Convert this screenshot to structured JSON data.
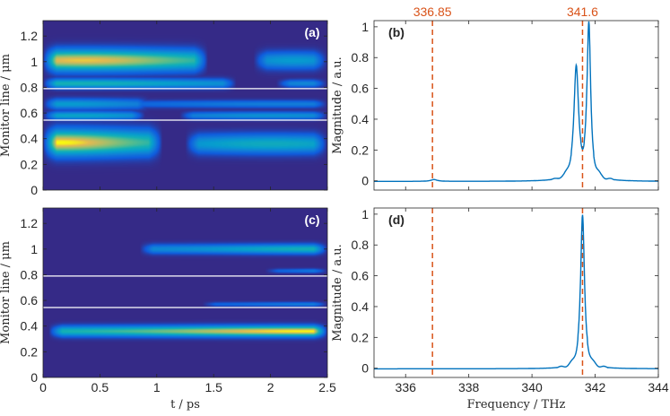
{
  "figure": {
    "colors": {
      "line": "#0072BD",
      "ref_line": "#D95319",
      "map_background": "#352A87",
      "monitor_line": "#FFFFFF"
    },
    "colormap": "parula"
  },
  "chart_data": [
    {
      "panel": "(a)",
      "type": "heatmap",
      "xlabel": "t / ps",
      "ylabel": "Monitor line / μm",
      "xlim": [
        0,
        2.5
      ],
      "ylim": [
        0,
        1.32
      ],
      "xticks": [
        "0",
        "0.5",
        "1",
        "1.5",
        "2",
        "2.5"
      ],
      "yticks": [
        "0",
        "0.2",
        "0.4",
        "0.6",
        "0.8",
        "1",
        "1.2"
      ],
      "monitor_lines_um": [
        0.79,
        0.545
      ],
      "bands": [
        {
          "t_start": 0.0,
          "t_end": 1.45,
          "y_center": 1.01,
          "y_width": 0.1,
          "peak_t": 0.35,
          "peak": 0.95
        },
        {
          "t_start": 1.85,
          "t_end": 2.5,
          "y_center": 1.01,
          "y_width": 0.08,
          "peak_t": 2.2,
          "peak": 0.45
        },
        {
          "t_start": 0.0,
          "t_end": 1.7,
          "y_center": 0.83,
          "y_width": 0.045,
          "peak_t": 0.3,
          "peak": 0.6
        },
        {
          "t_start": 2.05,
          "t_end": 2.5,
          "y_center": 0.83,
          "y_width": 0.035,
          "peak_t": 2.3,
          "peak": 0.35
        },
        {
          "t_start": 0.0,
          "t_end": 0.95,
          "y_center": 0.67,
          "y_width": 0.05,
          "peak_t": 0.2,
          "peak": 0.45
        },
        {
          "t_start": 0.7,
          "t_end": 2.5,
          "y_center": 0.67,
          "y_width": 0.035,
          "peak_t": 2.1,
          "peak": 0.3
        },
        {
          "t_start": 0.0,
          "t_end": 0.9,
          "y_center": 0.58,
          "y_width": 0.04,
          "peak_t": 0.3,
          "peak": 0.5
        },
        {
          "t_start": 1.2,
          "t_end": 2.5,
          "y_center": 0.58,
          "y_width": 0.035,
          "peak_t": 2.0,
          "peak": 0.4
        },
        {
          "t_start": 0.0,
          "t_end": 1.05,
          "y_center": 0.37,
          "y_width": 0.12,
          "peak_t": 0.15,
          "peak": 1.0
        },
        {
          "t_start": 1.25,
          "t_end": 2.5,
          "y_center": 0.36,
          "y_width": 0.09,
          "peak_t": 2.0,
          "peak": 0.55
        }
      ]
    },
    {
      "panel": "(b)",
      "type": "line",
      "xlabel": "Frequency / THz",
      "ylabel": "Magnitude / a.u.",
      "xlim": [
        335,
        344
      ],
      "ylim": [
        -0.06,
        1.04
      ],
      "xticks": [
        "336",
        "338",
        "340",
        "342",
        "344"
      ],
      "yticks": [
        "0",
        "0.2",
        "0.4",
        "0.6",
        "0.8",
        "1"
      ],
      "ref_lines": [
        336.85,
        341.6
      ],
      "ref_labels": [
        "336.85",
        "341.6"
      ],
      "peaks": [
        {
          "center": 341.4,
          "height": 0.72,
          "width": 0.09
        },
        {
          "center": 341.8,
          "height": 1.0,
          "width": 0.07
        },
        {
          "center": 336.9,
          "height": 0.012,
          "width": 0.12
        }
      ],
      "series": [
        {
          "values": [
            [
              335.0,
              0.0
            ],
            [
              336.5,
              0.0
            ],
            [
              336.9,
              0.012
            ],
            [
              337.3,
              0.0
            ],
            [
              340.5,
              0.003
            ],
            [
              341.0,
              0.04
            ],
            [
              341.2,
              0.18
            ],
            [
              341.4,
              0.72
            ],
            [
              341.6,
              0.17
            ],
            [
              341.8,
              1.0
            ],
            [
              342.0,
              0.06
            ],
            [
              342.2,
              0.03
            ],
            [
              343.0,
              0.0
            ],
            [
              344.0,
              0.0
            ]
          ]
        }
      ]
    },
    {
      "panel": "(c)",
      "type": "heatmap",
      "xlabel": "t / ps",
      "ylabel": "Monitor line / μm",
      "xlim": [
        0,
        2.5
      ],
      "ylim": [
        0,
        1.32
      ],
      "xticks": [
        "0",
        "0.5",
        "1",
        "1.5",
        "2",
        "2.5"
      ],
      "yticks": [
        "0",
        "0.2",
        "0.4",
        "0.6",
        "0.8",
        "1",
        "1.2"
      ],
      "monitor_lines_um": [
        0.79,
        0.545
      ],
      "bands": [
        {
          "t_start": 0.85,
          "t_end": 2.5,
          "y_center": 1.0,
          "y_width": 0.045,
          "peak_t": 2.5,
          "peak": 0.6
        },
        {
          "t_start": 1.95,
          "t_end": 2.5,
          "y_center": 0.83,
          "y_width": 0.02,
          "peak_t": 2.5,
          "peak": 0.3
        },
        {
          "t_start": 1.4,
          "t_end": 2.5,
          "y_center": 0.57,
          "y_width": 0.02,
          "peak_t": 2.4,
          "peak": 0.3
        },
        {
          "t_start": 0.05,
          "t_end": 2.5,
          "y_center": 0.36,
          "y_width": 0.05,
          "peak_t": 2.35,
          "peak": 1.0
        }
      ]
    },
    {
      "panel": "(d)",
      "type": "line",
      "xlabel": "Frequency / THz",
      "ylabel": "Magnitude / a.u.",
      "xlim": [
        335,
        344
      ],
      "ylim": [
        -0.06,
        1.04
      ],
      "xticks": [
        "336",
        "338",
        "340",
        "342",
        "344"
      ],
      "yticks": [
        "0",
        "0.2",
        "0.4",
        "0.6",
        "0.8",
        "1"
      ],
      "ref_lines": [
        336.85,
        341.6
      ],
      "peaks": [
        {
          "center": 341.6,
          "height": 1.0,
          "width": 0.075
        }
      ],
      "series": [
        {
          "values": [
            [
              335.0,
              0.0
            ],
            [
              341.0,
              0.0
            ],
            [
              341.3,
              0.04
            ],
            [
              341.45,
              0.08
            ],
            [
              341.6,
              1.0
            ],
            [
              341.75,
              0.08
            ],
            [
              341.9,
              0.04
            ],
            [
              342.2,
              0.01
            ],
            [
              344.0,
              0.0
            ]
          ]
        }
      ]
    }
  ]
}
